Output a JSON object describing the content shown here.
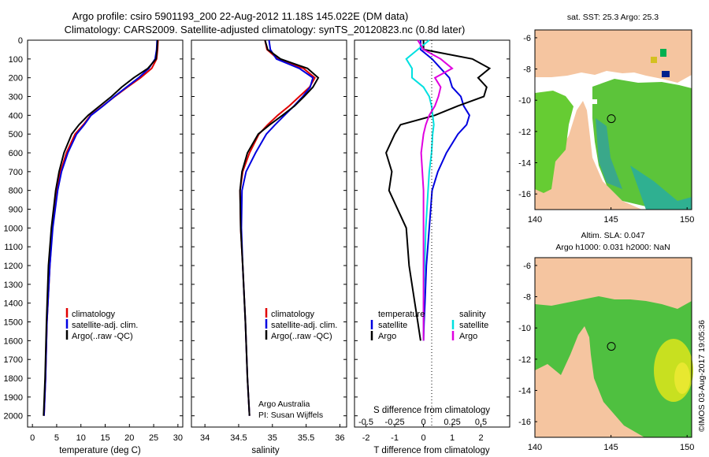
{
  "header": {
    "title_line1": "Argo profile: csiro 5901193_200 22-Aug-2012 11.18S 145.022E (DM data)",
    "title_line2": "Climatology: CARS2009. Satellite-adjusted climatology: synTS_20120823.nc (0.8d later)"
  },
  "colors": {
    "climatology": "#e00000",
    "satellite": "#0000e0",
    "argo": "#000000",
    "salinity_diff": "#e000e0",
    "salinity_sat_diff": "#00e0e0",
    "land": "#f5c5a0",
    "ocean_green": "#66cc33"
  },
  "pressure_axis": {
    "ylim": [
      0,
      2060
    ],
    "ticks": [
      "0",
      "100",
      "200",
      "300",
      "400",
      "500",
      "600",
      "700",
      "800",
      "900",
      "1000",
      "1100",
      "1200",
      "1300",
      "1400",
      "1500",
      "1600",
      "1700",
      "1800",
      "1900",
      "2000"
    ]
  },
  "legend_profiles": {
    "climatology": "climatology",
    "satellite": "satellite-adj. clim.",
    "argo": "Argo(..raw -QC)"
  },
  "chart_data": [
    {
      "type": "line",
      "panel": "temperature",
      "xlabel": "temperature (deg C)",
      "xlim": [
        -1,
        31
      ],
      "xticks": [
        "0",
        "5",
        "10",
        "15",
        "20",
        "25",
        "30"
      ],
      "y": [
        0,
        50,
        100,
        150,
        200,
        250,
        300,
        350,
        400,
        450,
        500,
        600,
        700,
        800,
        1000,
        1200,
        1500,
        1800,
        2000
      ],
      "series": [
        {
          "name": "climatology",
          "values": [
            25.9,
            25.8,
            25.6,
            24.6,
            22.3,
            19.6,
            17.0,
            14.5,
            12.0,
            10.5,
            8.8,
            7.0,
            5.8,
            5.0,
            4.1,
            3.6,
            3.0,
            2.7,
            2.4
          ]
        },
        {
          "name": "satellite-adj. clim.",
          "values": [
            25.7,
            25.6,
            25.3,
            24.0,
            21.9,
            19.4,
            16.9,
            14.6,
            12.1,
            10.7,
            9.1,
            7.3,
            6.0,
            5.2,
            4.2,
            3.6,
            3.0,
            2.7,
            2.4
          ]
        },
        {
          "name": "Argo(..raw -QC)",
          "values": [
            25.8,
            25.7,
            25.5,
            23.8,
            20.9,
            18.4,
            16.3,
            13.9,
            11.5,
            9.6,
            8.1,
            6.5,
            5.5,
            4.8,
            3.9,
            3.3,
            2.9,
            2.6,
            2.3
          ]
        }
      ]
    },
    {
      "type": "line",
      "panel": "salinity",
      "xlabel": "salinity",
      "xlim": [
        33.8,
        36.1
      ],
      "xticks": [
        "34",
        "34.5",
        "35",
        "35.5",
        "36"
      ],
      "y": [
        0,
        50,
        100,
        150,
        200,
        250,
        300,
        350,
        400,
        450,
        500,
        600,
        700,
        800,
        1000,
        1200,
        1500,
        1800,
        2000
      ],
      "series": [
        {
          "name": "climatology",
          "values": [
            34.89,
            34.92,
            35.08,
            35.46,
            35.63,
            35.55,
            35.4,
            35.25,
            35.08,
            34.93,
            34.8,
            34.66,
            34.56,
            34.52,
            34.53,
            34.56,
            34.6,
            34.63,
            34.66
          ]
        },
        {
          "name": "satellite-adj. clim.",
          "values": [
            34.95,
            34.97,
            35.06,
            35.4,
            35.6,
            35.56,
            35.45,
            35.32,
            35.18,
            35.04,
            34.91,
            34.75,
            34.61,
            34.55,
            34.54,
            34.56,
            34.6,
            34.63,
            34.66
          ]
        },
        {
          "name": "Argo(..raw -QC)",
          "values": [
            34.89,
            34.93,
            35.12,
            35.52,
            35.68,
            35.6,
            35.47,
            35.33,
            35.15,
            34.96,
            34.79,
            34.63,
            34.55,
            34.52,
            34.53,
            34.56,
            34.6,
            34.63,
            34.66
          ]
        }
      ]
    },
    {
      "type": "line",
      "panel": "difference",
      "xlabel": "T difference from climatology",
      "xlabel_top": "S difference from climatology",
      "xlim": [
        -2.4,
        3.0
      ],
      "xticks": [
        "-2",
        "-1",
        "0",
        "1",
        "2"
      ],
      "xticks_s": [
        "-0.5",
        "-0.25",
        "0",
        "0.25",
        "0.5"
      ],
      "y": [
        0,
        50,
        100,
        150,
        200,
        250,
        300,
        350,
        400,
        450,
        500,
        600,
        700,
        800,
        1000,
        1200,
        1400,
        1500,
        1600
      ],
      "series": [
        {
          "name": "temperature satellite",
          "values": [
            -0.1,
            -0.1,
            0.3,
            0.6,
            0.9,
            1.0,
            1.3,
            1.4,
            1.6,
            1.5,
            1.2,
            0.8,
            0.5,
            0.3,
            0.2,
            0.1,
            0.05,
            0.02,
            0.0
          ]
        },
        {
          "name": "temperature Argo",
          "values": [
            0.0,
            0.0,
            1.7,
            2.3,
            1.9,
            2.2,
            2.1,
            1.2,
            0.4,
            -0.8,
            -1.0,
            -1.3,
            -1.1,
            -1.2,
            -0.6,
            -0.5,
            -0.3,
            -0.2,
            -0.1
          ]
        },
        {
          "name": "salinity satellite",
          "values": [
            0.05,
            -0.05,
            -0.15,
            -0.1,
            -0.1,
            0.0,
            0.05,
            0.07,
            0.08,
            0.09,
            0.08,
            0.07,
            0.05,
            0.04,
            0.02,
            0.01,
            0.0,
            0.0,
            0.0
          ]
        },
        {
          "name": "salinity Argo",
          "values": [
            -0.05,
            0.0,
            0.15,
            0.25,
            0.1,
            0.15,
            0.13,
            0.1,
            0.05,
            0.02,
            0.0,
            -0.02,
            -0.01,
            0.0,
            0.0,
            0.0,
            0.0,
            0.0,
            0.0
          ]
        }
      ]
    }
  ],
  "panel_text": {
    "institution": "Argo Australia",
    "pi": "PI: Susan Wijffels",
    "legend_temperature": "temperature",
    "legend_salinity": "salinity",
    "legend_satellite": "satellite",
    "legend_argo": "Argo"
  },
  "maps": [
    {
      "title": "sat. SST: 25.3 Argo: 25.3",
      "title2": "",
      "xticks": [
        "140",
        "145",
        "150"
      ],
      "yticks": [
        "-6",
        "-8",
        "-10",
        "-12",
        "-14",
        "-16"
      ],
      "marker_lon": 145.022,
      "marker_lat": -11.18
    },
    {
      "title": "Altim. SLA: 0.047",
      "title2": "Argo h1000: 0.031 h2000: NaN",
      "xticks": [
        "140",
        "145",
        "150"
      ],
      "yticks": [
        "-6",
        "-8",
        "-10",
        "-12",
        "-14",
        "-16"
      ],
      "marker_lon": 145.022,
      "marker_lat": -11.18
    }
  ],
  "footer": {
    "stamp": "©IMOS 03-Aug-2017 19:05:36"
  }
}
